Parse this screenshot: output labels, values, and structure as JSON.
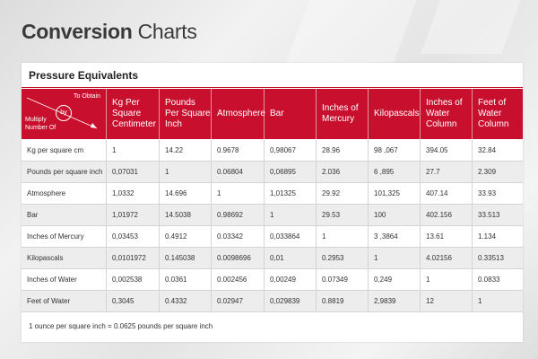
{
  "page_title": {
    "bold": "Conversion",
    "regular": "Charts"
  },
  "section_title": "Pressure Equivalents",
  "corner": {
    "to_obtain": "To Obtain",
    "by": "by",
    "multiply": "Multiply",
    "number_of": "Number Of"
  },
  "columns": [
    "Kg Per Square Centimeter",
    "Pounds Per Square Inch",
    "Atmosphere",
    "Bar",
    "Inches of Mercury",
    "Kilopascals",
    "Inches of Water Column",
    "Feet of Water Column"
  ],
  "rows": [
    {
      "label": "Kg per square cm",
      "values": [
        "1",
        "14.22",
        "0.9678",
        "0,98067",
        "28.96",
        "98 ,067",
        "394.05",
        "32.84"
      ]
    },
    {
      "label": "Pounds per square inch",
      "values": [
        "0,07031",
        "1",
        "0.06804",
        "0,06895",
        "2.036",
        "6 ,895",
        "27.7",
        "2.309"
      ]
    },
    {
      "label": "Atmosphere",
      "values": [
        "1,0332",
        "14.696",
        "1",
        "1,01325",
        "29.92",
        "101,325",
        "407.14",
        "33.93"
      ]
    },
    {
      "label": "Bar",
      "values": [
        "1,01972",
        "14.5038",
        "0.98692",
        "1",
        "29.53",
        "100",
        "402.156",
        "33.513"
      ]
    },
    {
      "label": "Inches of Mercury",
      "values": [
        "0,03453",
        "0.4912",
        "0.03342",
        "0,033864",
        "1",
        "3 ,3864",
        "13.61",
        "1.134"
      ]
    },
    {
      "label": "Kilopascals",
      "values": [
        "0,0101972",
        "0.145038",
        "0.0098696",
        "0,01",
        "0.2953",
        "1",
        "4.02156",
        "0.33513"
      ]
    },
    {
      "label": "Inches of Water",
      "values": [
        "0,002538",
        "0.0361",
        "0.002456",
        "0,00249",
        "0.07349",
        "0,249",
        "1",
        "0.0833"
      ]
    },
    {
      "label": "Feet of Water",
      "values": [
        "0,3045",
        "0.4332",
        "0.02947",
        "0,029839",
        "0.8819",
        "2,9839",
        "12",
        "1"
      ]
    }
  ],
  "footnote": "1 ounce per square inch = 0.0625 pounds per square inch",
  "colors": {
    "accent": "#c8102e",
    "row_alt": "#ededed"
  }
}
